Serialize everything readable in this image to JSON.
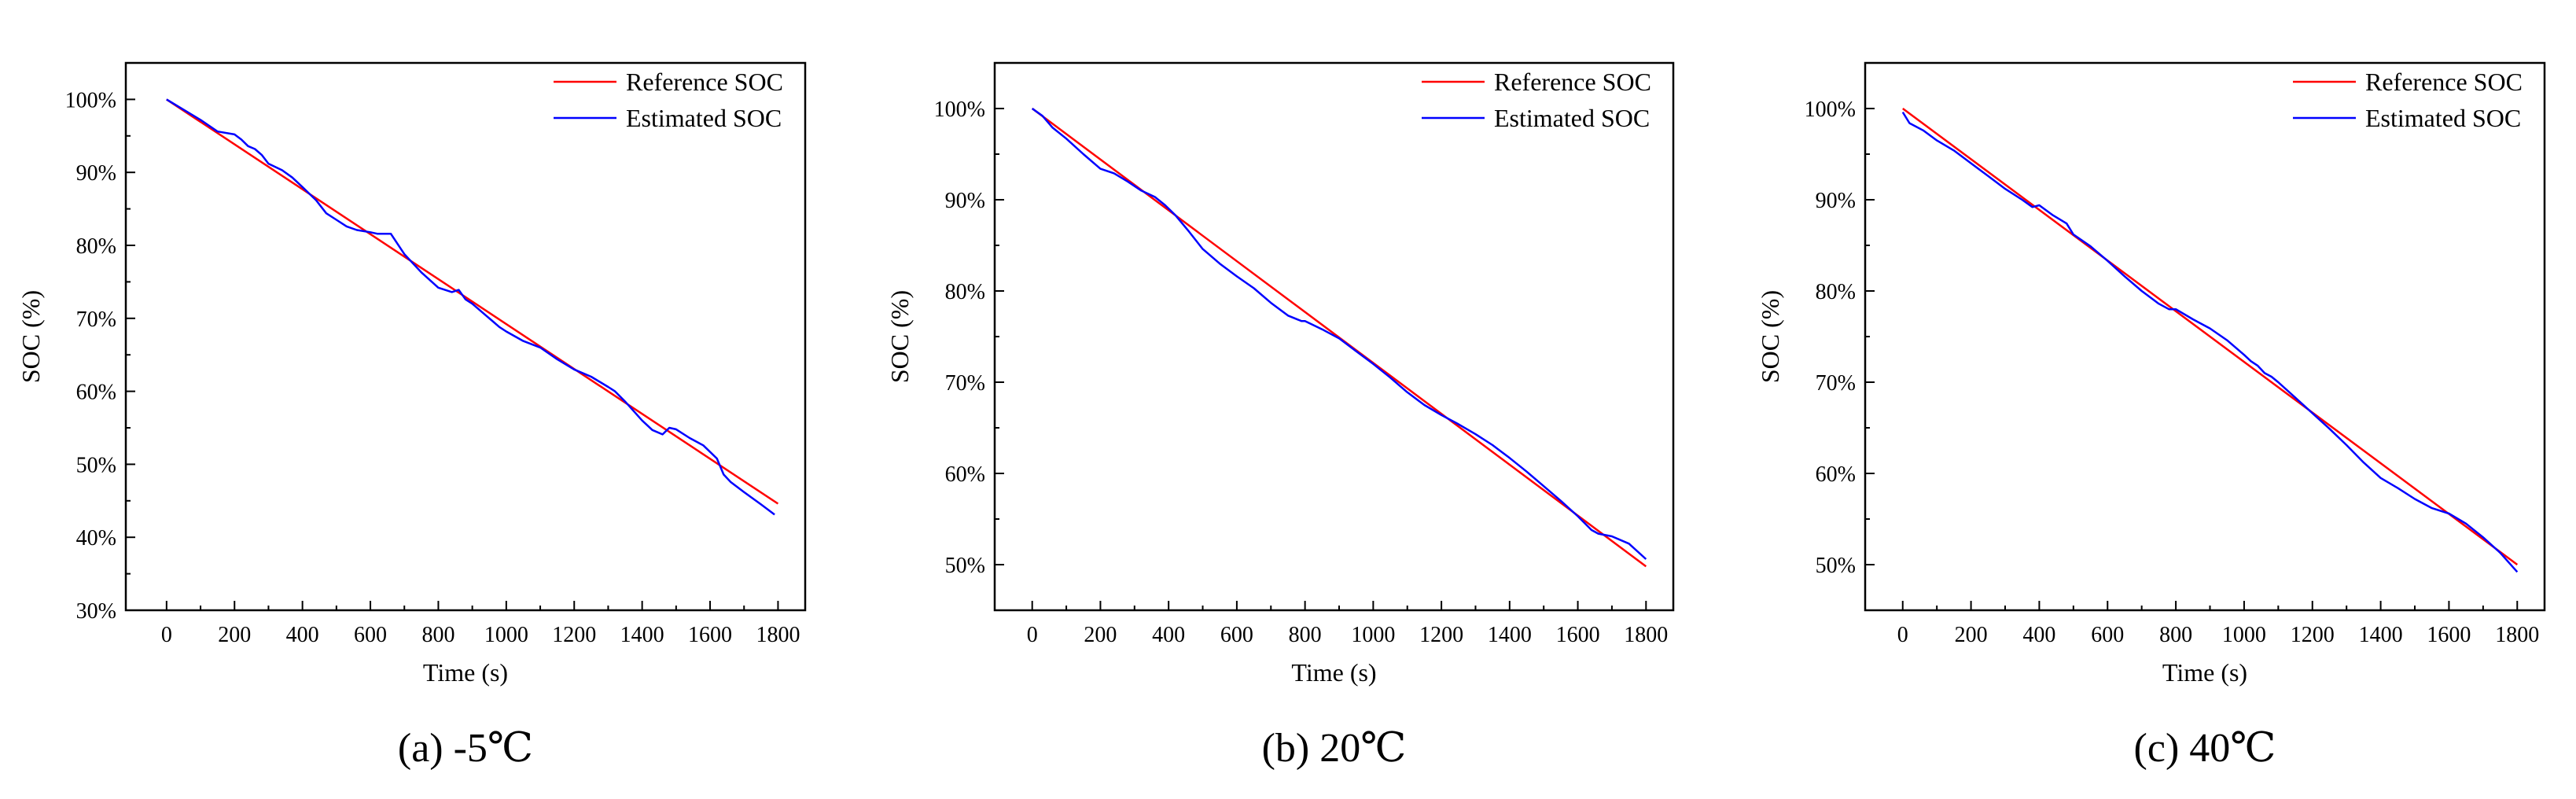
{
  "figure": {
    "background": "#ffffff",
    "axis_color": "#000000"
  },
  "chart_data": [
    {
      "type": "line",
      "caption": "(a) -5℃",
      "xlabel": "Time (s)",
      "ylabel": "SOC (%)",
      "xlim": [
        -120,
        1880
      ],
      "ylim": [
        30,
        105
      ],
      "xticks": [
        0,
        200,
        400,
        600,
        800,
        1000,
        1200,
        1400,
        1600,
        1800
      ],
      "yticks": [
        30,
        40,
        50,
        60,
        70,
        80,
        90,
        100
      ],
      "ytick_labels": [
        "30%",
        "40%",
        "50%",
        "60%",
        "70%",
        "80%",
        "90%",
        "100%"
      ],
      "grid": false,
      "legend": "top-right",
      "series": [
        {
          "name": "Reference SOC",
          "color": "#ff0000",
          "x": [
            0,
            1800
          ],
          "y": [
            100,
            44.6
          ]
        },
        {
          "name": "Estimated SOC",
          "color": "#0000ff",
          "x": [
            0,
            100,
            150,
            200,
            220,
            240,
            260,
            280,
            300,
            340,
            370,
            400,
            440,
            470,
            500,
            530,
            560,
            600,
            620,
            660,
            700,
            750,
            800,
            840,
            860,
            880,
            900,
            940,
            960,
            980,
            1000,
            1050,
            1100,
            1150,
            1200,
            1250,
            1300,
            1320,
            1350,
            1400,
            1430,
            1460,
            1480,
            1500,
            1540,
            1580,
            1620,
            1640,
            1660,
            1700,
            1750,
            1790
          ],
          "y": [
            100,
            97.2,
            95.6,
            95.2,
            94.5,
            93.6,
            93.2,
            92.4,
            91.2,
            90.3,
            89.3,
            88,
            86.2,
            84.4,
            83.5,
            82.6,
            82.1,
            81.8,
            81.6,
            81.6,
            78.8,
            76.3,
            74.2,
            73.6,
            73.9,
            72.6,
            72,
            70.4,
            69.6,
            68.8,
            68.2,
            66.9,
            66,
            64.4,
            63,
            62,
            60.6,
            60,
            58.6,
            56,
            54.7,
            54.1,
            55,
            54.8,
            53.6,
            52.6,
            50.8,
            48.6,
            47.6,
            46.2,
            44.5,
            43.1
          ]
        }
      ]
    },
    {
      "type": "line",
      "caption": "(b)  20℃",
      "xlabel": "Time (s)",
      "ylabel": "SOC (%)",
      "xlim": [
        -110,
        1880
      ],
      "ylim": [
        45,
        105
      ],
      "xticks": [
        0,
        200,
        400,
        600,
        800,
        1000,
        1200,
        1400,
        1600,
        1800
      ],
      "yticks": [
        50,
        60,
        70,
        80,
        90,
        100
      ],
      "ytick_labels": [
        "50%",
        "60%",
        "70%",
        "80%",
        "90%",
        "100%"
      ],
      "grid": false,
      "legend": "top-right",
      "series": [
        {
          "name": "Reference SOC",
          "color": "#ff0000",
          "x": [
            0,
            1800
          ],
          "y": [
            100,
            49.8
          ]
        },
        {
          "name": "Estimated SOC",
          "color": "#0000ff",
          "x": [
            0,
            30,
            60,
            100,
            150,
            200,
            240,
            280,
            320,
            360,
            390,
            420,
            460,
            500,
            550,
            600,
            650,
            700,
            750,
            790,
            800,
            850,
            900,
            950,
            1000,
            1050,
            1100,
            1150,
            1200,
            1250,
            1300,
            1350,
            1400,
            1450,
            1500,
            1550,
            1600,
            1640,
            1660,
            1700,
            1750,
            1800
          ],
          "y": [
            100,
            99.2,
            97.9,
            96.7,
            95,
            93.4,
            92.9,
            92,
            91,
            90.3,
            89.4,
            88.3,
            86.5,
            84.6,
            83,
            81.6,
            80.3,
            78.7,
            77.3,
            76.7,
            76.7,
            75.8,
            74.8,
            73.4,
            72,
            70.5,
            68.9,
            67.5,
            66.4,
            65.4,
            64.3,
            63.1,
            61.7,
            60.2,
            58.6,
            57,
            55.3,
            53.8,
            53.4,
            53.1,
            52.3,
            50.6
          ]
        }
      ]
    },
    {
      "type": "line",
      "caption": "(c) 40℃",
      "xlabel": "Time (s)",
      "ylabel": "SOC (%)",
      "xlim": [
        -110,
        1880
      ],
      "ylim": [
        45,
        105
      ],
      "xticks": [
        0,
        200,
        400,
        600,
        800,
        1000,
        1200,
        1400,
        1600,
        1800
      ],
      "yticks": [
        50,
        60,
        70,
        80,
        90,
        100
      ],
      "ytick_labels": [
        "50%",
        "60%",
        "70%",
        "80%",
        "90%",
        "100%"
      ],
      "grid": false,
      "legend": "top-right",
      "series": [
        {
          "name": "Reference SOC",
          "color": "#ff0000",
          "x": [
            0,
            1800
          ],
          "y": [
            100,
            50
          ]
        },
        {
          "name": "Estimated SOC",
          "color": "#0000ff",
          "x": [
            0,
            20,
            60,
            100,
            150,
            200,
            250,
            300,
            350,
            380,
            400,
            440,
            480,
            500,
            550,
            600,
            650,
            700,
            750,
            780,
            800,
            850,
            900,
            950,
            1000,
            1020,
            1040,
            1060,
            1080,
            1100,
            1150,
            1200,
            1250,
            1300,
            1350,
            1400,
            1450,
            1500,
            1550,
            1600,
            1650,
            1700,
            1750,
            1800
          ],
          "y": [
            99.6,
            98.4,
            97.6,
            96.5,
            95.4,
            94,
            92.6,
            91.2,
            90,
            89.2,
            89.4,
            88.3,
            87.4,
            86.2,
            84.9,
            83.3,
            81.6,
            80,
            78.6,
            78,
            78,
            76.9,
            75.9,
            74.6,
            73,
            72.3,
            71.8,
            71,
            70.6,
            70,
            68.3,
            66.6,
            64.9,
            63.1,
            61.2,
            59.5,
            58.4,
            57.2,
            56.2,
            55.6,
            54.5,
            53,
            51.3,
            49.2
          ]
        }
      ]
    }
  ]
}
